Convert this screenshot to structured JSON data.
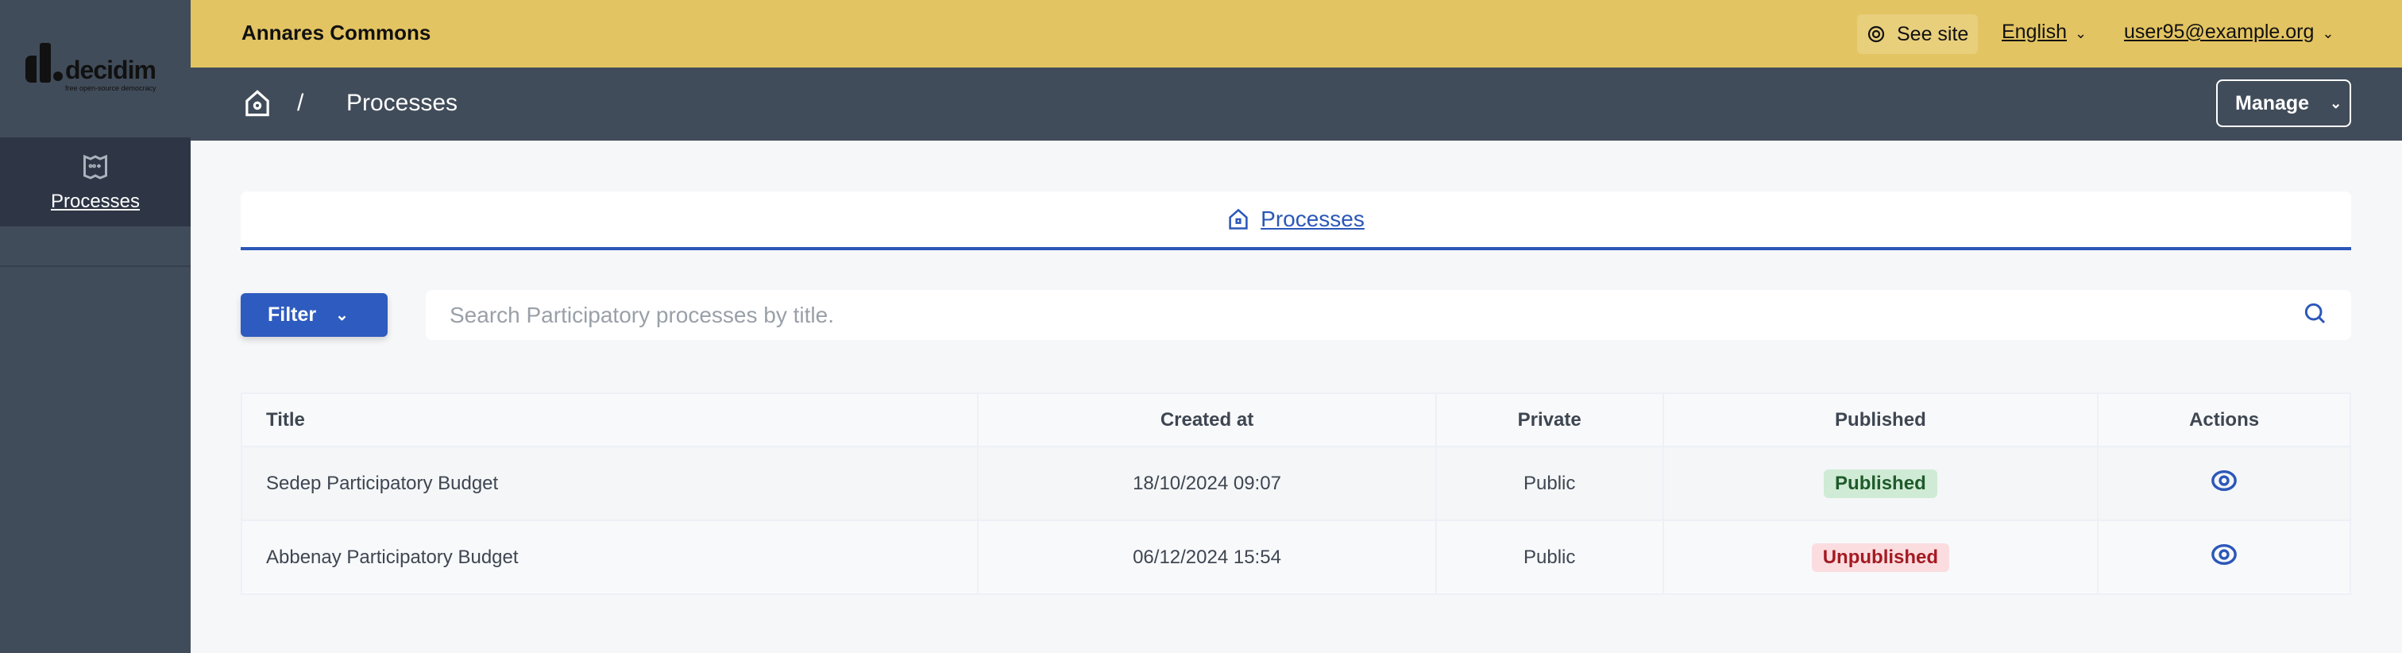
{
  "logo": {
    "text": "decidim",
    "tagline": "free open-source democracy"
  },
  "sidebar": {
    "items": [
      {
        "label": "Processes",
        "icon": "map-icon"
      }
    ]
  },
  "topbar": {
    "org_name": "Annares Commons",
    "see_site": "See site",
    "language": "English",
    "user": "user95@example.org"
  },
  "breadcrumb": {
    "separator": "/",
    "current": "Processes",
    "manage": "Manage"
  },
  "tabs": [
    {
      "label": "Processes"
    }
  ],
  "filter": {
    "label": "Filter",
    "search_placeholder": "Search Participatory processes by title."
  },
  "table": {
    "headers": [
      "Title",
      "Created at",
      "Private",
      "Published",
      "Actions"
    ],
    "rows": [
      {
        "title": "Sedep Participatory Budget",
        "created": "18/10/2024 09:07",
        "private": "Public",
        "published": "Published"
      },
      {
        "title": "Abbenay Participatory Budget",
        "created": "06/12/2024 15:54",
        "private": "Public",
        "published": "Unpublished"
      }
    ]
  },
  "colors": {
    "topbar": "#e3c462",
    "sidebar": "#414c5a",
    "accent": "#2b57b8"
  }
}
